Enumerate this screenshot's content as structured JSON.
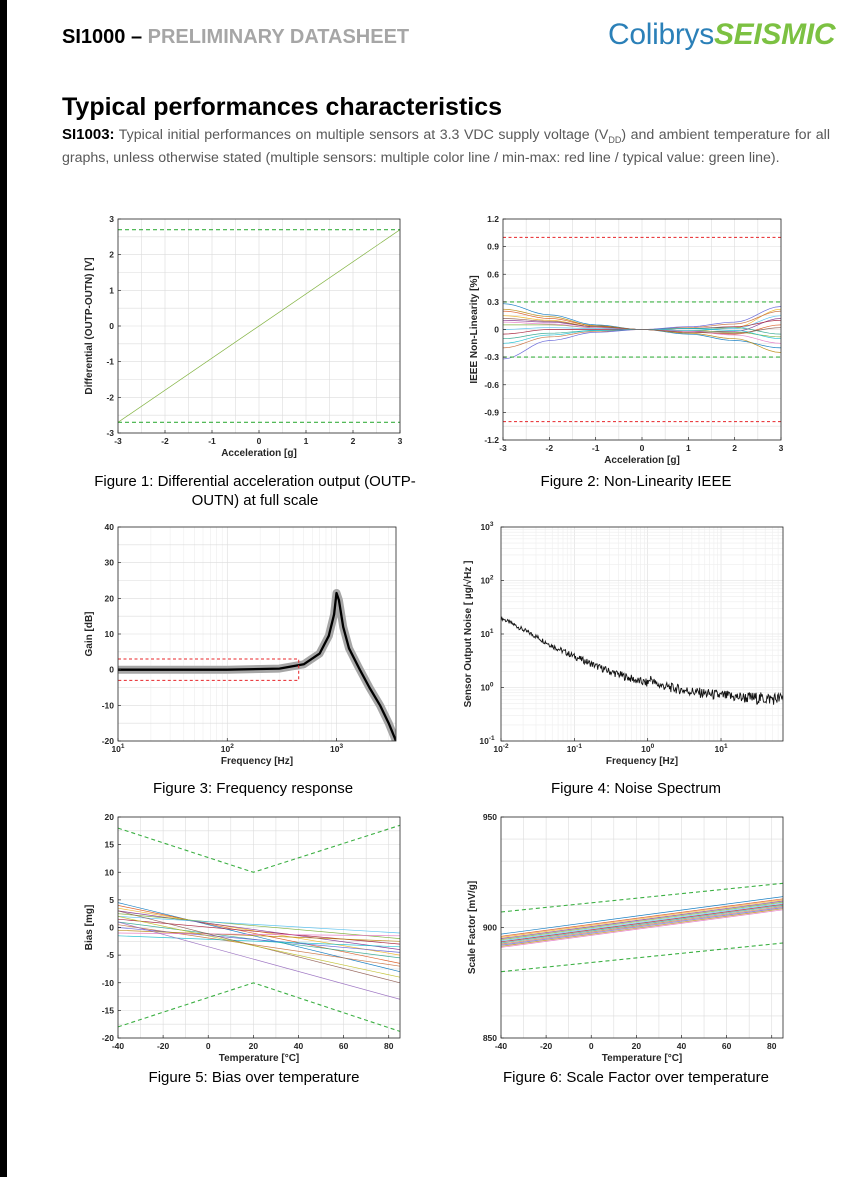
{
  "header": {
    "doc_code": "SI1000 –",
    "doc_type": "PRELIMINARY DATASHEET",
    "logo_part1": "Colibrys",
    "logo_part2": "SEISMIC"
  },
  "section": {
    "title": "Typical performances characteristics",
    "lead": "SI1003:",
    "intro_a": " Typical initial performances on multiple sensors at 3.3 VDC supply voltage (V",
    "intro_sub": "DD",
    "intro_b": ") and ambient temperature for all graphs, unless otherwise stated (multiple sensors: multiple color line / min-max: red line / typical value: green line)."
  },
  "colors": {
    "min_max": "#e8262a",
    "typical": "#3cb043",
    "response_envelope": "#a6a6a6",
    "response_line": "#000000",
    "grid": "#e3e3e3"
  },
  "chart_data": [
    {
      "id": "fig1",
      "type": "line",
      "caption": "Figure 1: Differential acceleration output (OUTP-OUTN) at full scale",
      "xlabel": "Acceleration [g]",
      "ylabel": "Differential (OUTP-OUTN) [V]",
      "xlim": [
        -3,
        3
      ],
      "ylim": [
        -3,
        3
      ],
      "xticks": [
        -3,
        -2,
        -1,
        0,
        1,
        2,
        3
      ],
      "xticklabels": [
        "-3",
        "-2",
        "-1",
        "0",
        "1",
        "2",
        "3"
      ],
      "yticks": [
        -3,
        -2,
        -1,
        0,
        1,
        2,
        3
      ],
      "yticklabels": [
        "-3",
        "-2",
        "-1",
        "0",
        "1",
        "2",
        "3"
      ],
      "xscale": "linear",
      "yscale": "linear",
      "grid": true,
      "series": [
        {
          "style": "sensor",
          "x": [
            -3,
            3
          ],
          "y": [
            -2.7,
            2.7
          ]
        },
        {
          "style": "typical-dashed",
          "x": [
            -3,
            3
          ],
          "y": [
            2.7,
            2.7
          ]
        },
        {
          "style": "typical-dashed",
          "x": [
            -3,
            3
          ],
          "y": [
            -2.7,
            -2.7
          ]
        }
      ]
    },
    {
      "id": "fig2",
      "type": "line",
      "caption": "Figure 2: Non-Linearity IEEE",
      "xlabel": "Acceleration [g]",
      "ylabel": "IEEE Non-Linearity [%]",
      "xlim": [
        -3,
        3
      ],
      "ylim": [
        -1.2,
        1.2
      ],
      "xticks": [
        -3,
        -2,
        -1,
        0,
        1,
        2,
        3
      ],
      "xticklabels": [
        "-3",
        "-2",
        "-1",
        "0",
        "1",
        "2",
        "3"
      ],
      "yticks": [
        -1.2,
        -0.9,
        -0.6,
        -0.3,
        0,
        0.3,
        0.6,
        0.9,
        1.2
      ],
      "yticklabels": [
        "-1.2",
        "-0.9",
        "-0.6",
        "-0.3",
        "0",
        "0.3",
        "0.6",
        "0.9",
        "1.2"
      ],
      "xscale": "linear",
      "yscale": "linear",
      "grid": true,
      "series": [
        {
          "style": "sensor",
          "x": [
            -3,
            -2,
            -1,
            0,
            1,
            2,
            3
          ],
          "y": [
            0.28,
            0.16,
            0.05,
            0,
            -0.05,
            -0.12,
            -0.2
          ]
        },
        {
          "style": "sensor",
          "x": [
            -3,
            -2,
            -1,
            0,
            1,
            2,
            3
          ],
          "y": [
            0.2,
            0.12,
            0.04,
            0,
            -0.03,
            -0.05,
            0.05
          ]
        },
        {
          "style": "sensor",
          "x": [
            -3,
            -2,
            -1,
            0,
            1,
            2,
            3
          ],
          "y": [
            0.15,
            0.1,
            0.03,
            0,
            -0.02,
            0.02,
            0.22
          ]
        },
        {
          "style": "sensor",
          "x": [
            -3,
            -2,
            -1,
            0,
            1,
            2,
            3
          ],
          "y": [
            0.1,
            0.08,
            0.03,
            0,
            -0.02,
            -0.02,
            0.12
          ]
        },
        {
          "style": "sensor",
          "x": [
            -3,
            -2,
            -1,
            0,
            1,
            2,
            3
          ],
          "y": [
            0.05,
            0.05,
            0.02,
            0,
            -0.01,
            -0.03,
            -0.08
          ]
        },
        {
          "style": "sensor",
          "x": [
            -3,
            -2,
            -1,
            0,
            1,
            2,
            3
          ],
          "y": [
            0.0,
            0.02,
            0.01,
            0,
            -0.01,
            0.01,
            0.15
          ]
        },
        {
          "style": "sensor",
          "x": [
            -3,
            -2,
            -1,
            0,
            1,
            2,
            3
          ],
          "y": [
            -0.05,
            0.0,
            0.0,
            0,
            0.01,
            0.03,
            0.1
          ]
        },
        {
          "style": "sensor",
          "x": [
            -3,
            -2,
            -1,
            0,
            1,
            2,
            3
          ],
          "y": [
            -0.1,
            -0.04,
            -0.01,
            0,
            0.01,
            0.02,
            -0.05
          ]
        },
        {
          "style": "sensor",
          "x": [
            -3,
            -2,
            -1,
            0,
            1,
            2,
            3
          ],
          "y": [
            -0.2,
            -0.08,
            -0.02,
            0,
            0.02,
            0.06,
            0.2
          ]
        },
        {
          "style": "sensor",
          "x": [
            -3,
            -2,
            -1,
            0,
            1,
            2,
            3
          ],
          "y": [
            -0.32,
            -0.12,
            -0.03,
            0,
            0.03,
            0.08,
            0.25
          ]
        },
        {
          "style": "sensor",
          "x": [
            -3,
            -2,
            -1,
            0,
            1,
            2,
            3
          ],
          "y": [
            0.22,
            0.14,
            0.04,
            0,
            -0.04,
            -0.1,
            -0.25
          ]
        },
        {
          "style": "sensor",
          "x": [
            -3,
            -2,
            -1,
            0,
            1,
            2,
            3
          ],
          "y": [
            0.08,
            0.06,
            0.02,
            0,
            -0.02,
            -0.06,
            -0.15
          ]
        },
        {
          "style": "sensor",
          "x": [
            -3,
            -2,
            -1,
            0,
            1,
            2,
            3
          ],
          "y": [
            -0.15,
            -0.06,
            -0.01,
            0,
            0.01,
            -0.01,
            -0.1
          ]
        },
        {
          "style": "sensor",
          "x": [
            -3,
            -2,
            -1,
            0,
            1,
            2,
            3
          ],
          "y": [
            0.12,
            0.09,
            0.03,
            0,
            -0.03,
            -0.04,
            0.02
          ]
        },
        {
          "style": "typical-dashed",
          "x": [
            -3,
            3
          ],
          "y": [
            0.3,
            0.3
          ]
        },
        {
          "style": "typical-dashed",
          "x": [
            -3,
            3
          ],
          "y": [
            -0.3,
            -0.3
          ]
        },
        {
          "style": "minmax-dashed",
          "x": [
            -3,
            3
          ],
          "y": [
            1.0,
            1.0
          ]
        },
        {
          "style": "minmax-dashed",
          "x": [
            -3,
            3
          ],
          "y": [
            -1.0,
            -1.0
          ]
        }
      ]
    },
    {
      "id": "fig3",
      "type": "line",
      "caption": "Figure 3: Frequency response",
      "xlabel": "Frequency [Hz]",
      "ylabel": "Gain [dB]",
      "xlim": [
        10,
        3500
      ],
      "ylim": [
        -20,
        40
      ],
      "xticks": [
        10,
        100,
        1000
      ],
      "xticklabels": [
        "10",
        "10",
        "10"
      ],
      "xtickexp": [
        "1",
        "2",
        "3"
      ],
      "yticks": [
        -20,
        -10,
        0,
        10,
        20,
        30,
        40
      ],
      "yticklabels": [
        "-20",
        "-10",
        "0",
        "10",
        "20",
        "30",
        "40"
      ],
      "xscale": "log",
      "yscale": "linear",
      "grid": true,
      "series": [
        {
          "style": "envelope",
          "x": [
            10,
            100,
            300,
            500,
            700,
            850,
            950,
            1000,
            1050,
            1150,
            1300,
            1600,
            2000,
            2500,
            3000,
            3500
          ],
          "y": [
            0,
            0,
            0.3,
            1.5,
            4.5,
            9.5,
            15.5,
            21.5,
            19.5,
            12,
            6,
            0.5,
            -5,
            -10,
            -15,
            -20
          ]
        },
        {
          "style": "response",
          "x": [
            10,
            100,
            300,
            500,
            700,
            850,
            950,
            1000,
            1050,
            1150,
            1300,
            1600,
            2000,
            2500,
            3000,
            3500
          ],
          "y": [
            0,
            0,
            0.3,
            1.5,
            4.5,
            9.5,
            15.5,
            21.5,
            19.5,
            12,
            6,
            0.5,
            -5,
            -10,
            -15,
            -20
          ]
        },
        {
          "style": "minmax-dashed",
          "x": [
            10,
            450,
            450,
            10
          ],
          "y": [
            3,
            3,
            -3,
            -3
          ]
        }
      ]
    },
    {
      "id": "fig4",
      "type": "line",
      "caption": "Figure 4: Noise Spectrum",
      "xlabel": "Frequency [Hz]",
      "ylabel": "Sensor Output Noise [ µg/√Hz ]",
      "xlim": [
        0.01,
        70
      ],
      "ylim": [
        0.1,
        1000
      ],
      "xticks": [
        0.01,
        0.1,
        1,
        10
      ],
      "xticklabels": [
        "10",
        "10",
        "10",
        "10"
      ],
      "xtickexp": [
        "-2",
        "-1",
        "0",
        "1"
      ],
      "yticks": [
        0.1,
        1,
        10,
        100,
        1000
      ],
      "yticklabels": [
        "10",
        "10",
        "10",
        "10",
        "10"
      ],
      "ytickexp": [
        "-1",
        "0",
        "1",
        "2",
        "3"
      ],
      "xscale": "log",
      "yscale": "log",
      "grid": true,
      "series": [
        {
          "style": "noise",
          "x": [
            0.01,
            0.015,
            0.02,
            0.03,
            0.05,
            0.07,
            0.1,
            0.15,
            0.2,
            0.3,
            0.5,
            0.7,
            1,
            1.1,
            1.3,
            2,
            3,
            5,
            10,
            20,
            40,
            70
          ],
          "y": [
            20,
            15,
            12,
            9,
            6,
            4.8,
            3.8,
            3,
            2.5,
            2,
            1.6,
            1.35,
            1.2,
            1.5,
            1.15,
            1.0,
            0.9,
            0.8,
            0.7,
            0.65,
            0.62,
            0.62
          ]
        }
      ]
    },
    {
      "id": "fig5",
      "type": "line",
      "caption": "Figure 5: Bias over temperature",
      "xlabel": "Temperature [°C]",
      "ylabel": "Bias [mg]",
      "xlim": [
        -40,
        85
      ],
      "ylim": [
        -20,
        20
      ],
      "xticks": [
        -40,
        -20,
        0,
        20,
        40,
        60,
        80
      ],
      "xticklabels": [
        "-40",
        "-20",
        "0",
        "20",
        "40",
        "60",
        "80"
      ],
      "yticks": [
        -20,
        -15,
        -10,
        -5,
        0,
        5,
        10,
        15,
        20
      ],
      "yticklabels": [
        "-20",
        "-15",
        "-10",
        "-5",
        "0",
        "5",
        "10",
        "15",
        "20"
      ],
      "xscale": "linear",
      "yscale": "linear",
      "grid": true,
      "series": [
        {
          "style": "sensor",
          "x": [
            -40,
            85
          ],
          "y": [
            4.5,
            -8
          ]
        },
        {
          "style": "sensor",
          "x": [
            -40,
            85
          ],
          "y": [
            4,
            -6.5
          ]
        },
        {
          "style": "sensor",
          "x": [
            -40,
            85
          ],
          "y": [
            3.5,
            -5
          ]
        },
        {
          "style": "sensor",
          "x": [
            -40,
            85
          ],
          "y": [
            3,
            -4
          ]
        },
        {
          "style": "sensor",
          "x": [
            -40,
            85
          ],
          "y": [
            2.5,
            -2
          ]
        },
        {
          "style": "sensor",
          "x": [
            -40,
            85
          ],
          "y": [
            2,
            -1
          ]
        },
        {
          "style": "sensor",
          "x": [
            -40,
            85
          ],
          "y": [
            1.5,
            -3
          ]
        },
        {
          "style": "sensor",
          "x": [
            -40,
            85
          ],
          "y": [
            1,
            -5.5
          ]
        },
        {
          "style": "sensor",
          "x": [
            -40,
            85
          ],
          "y": [
            0.5,
            -7
          ]
        },
        {
          "style": "sensor",
          "x": [
            -40,
            85
          ],
          "y": [
            0,
            -4.5
          ]
        },
        {
          "style": "sensor",
          "x": [
            -40,
            85
          ],
          "y": [
            -0.5,
            -2.5
          ]
        },
        {
          "style": "sensor",
          "x": [
            -40,
            85
          ],
          "y": [
            -1,
            -1.5
          ]
        },
        {
          "style": "sensor",
          "x": [
            -40,
            85
          ],
          "y": [
            -1.5,
            -3.5
          ]
        },
        {
          "style": "sensor",
          "x": [
            -40,
            85
          ],
          "y": [
            3,
            -10
          ]
        },
        {
          "style": "sensor",
          "x": [
            -40,
            85
          ],
          "y": [
            1,
            -13
          ]
        },
        {
          "style": "sensor",
          "x": [
            -40,
            85
          ],
          "y": [
            2,
            -9
          ]
        },
        {
          "style": "typical-dashed",
          "x": [
            -40,
            20,
            85
          ],
          "y": [
            18,
            10,
            18.5
          ]
        },
        {
          "style": "typical-dashed",
          "x": [
            -40,
            20,
            85
          ],
          "y": [
            -18,
            -10,
            -18.8
          ]
        }
      ]
    },
    {
      "id": "fig6",
      "type": "line",
      "caption": "Figure 6: Scale Factor over temperature",
      "xlabel": "Temperature [°C]",
      "ylabel": "Scale Factor [mV/g]",
      "xlim": [
        -40,
        85
      ],
      "ylim": [
        850,
        950
      ],
      "xticks": [
        -40,
        -20,
        0,
        20,
        40,
        60,
        80
      ],
      "xticklabels": [
        "-40",
        "-20",
        "0",
        "20",
        "40",
        "60",
        "80"
      ],
      "yticks": [
        850,
        900,
        950
      ],
      "yticklabels": [
        "850",
        "900",
        "950"
      ],
      "xscale": "linear",
      "yscale": "linear",
      "grid": true,
      "series": [
        {
          "style": "sensor",
          "x": [
            -40,
            85
          ],
          "y": [
            897,
            914
          ]
        },
        {
          "style": "sensor",
          "x": [
            -40,
            85
          ],
          "y": [
            896,
            913
          ]
        },
        {
          "style": "sensor",
          "x": [
            -40,
            85
          ],
          "y": [
            895.5,
            912.5
          ]
        },
        {
          "style": "sensor",
          "x": [
            -40,
            85
          ],
          "y": [
            895,
            912
          ]
        },
        {
          "style": "sensor",
          "x": [
            -40,
            85
          ],
          "y": [
            894.5,
            911.5
          ]
        },
        {
          "style": "sensor",
          "x": [
            -40,
            85
          ],
          "y": [
            894,
            911
          ]
        },
        {
          "style": "sensor",
          "x": [
            -40,
            85
          ],
          "y": [
            893.5,
            910.5
          ]
        },
        {
          "style": "sensor",
          "x": [
            -40,
            85
          ],
          "y": [
            893,
            910
          ]
        },
        {
          "style": "sensor",
          "x": [
            -40,
            85
          ],
          "y": [
            892.5,
            909.5
          ]
        },
        {
          "style": "sensor",
          "x": [
            -40,
            85
          ],
          "y": [
            892,
            909
          ]
        },
        {
          "style": "sensor",
          "x": [
            -40,
            85
          ],
          "y": [
            891.5,
            908.5
          ]
        },
        {
          "style": "sensor",
          "x": [
            -40,
            85
          ],
          "y": [
            891,
            908
          ]
        },
        {
          "style": "typical-dashed",
          "x": [
            -40,
            85
          ],
          "y": [
            907,
            920
          ]
        },
        {
          "style": "typical-dashed",
          "x": [
            -40,
            85
          ],
          "y": [
            880,
            893
          ]
        }
      ]
    }
  ]
}
